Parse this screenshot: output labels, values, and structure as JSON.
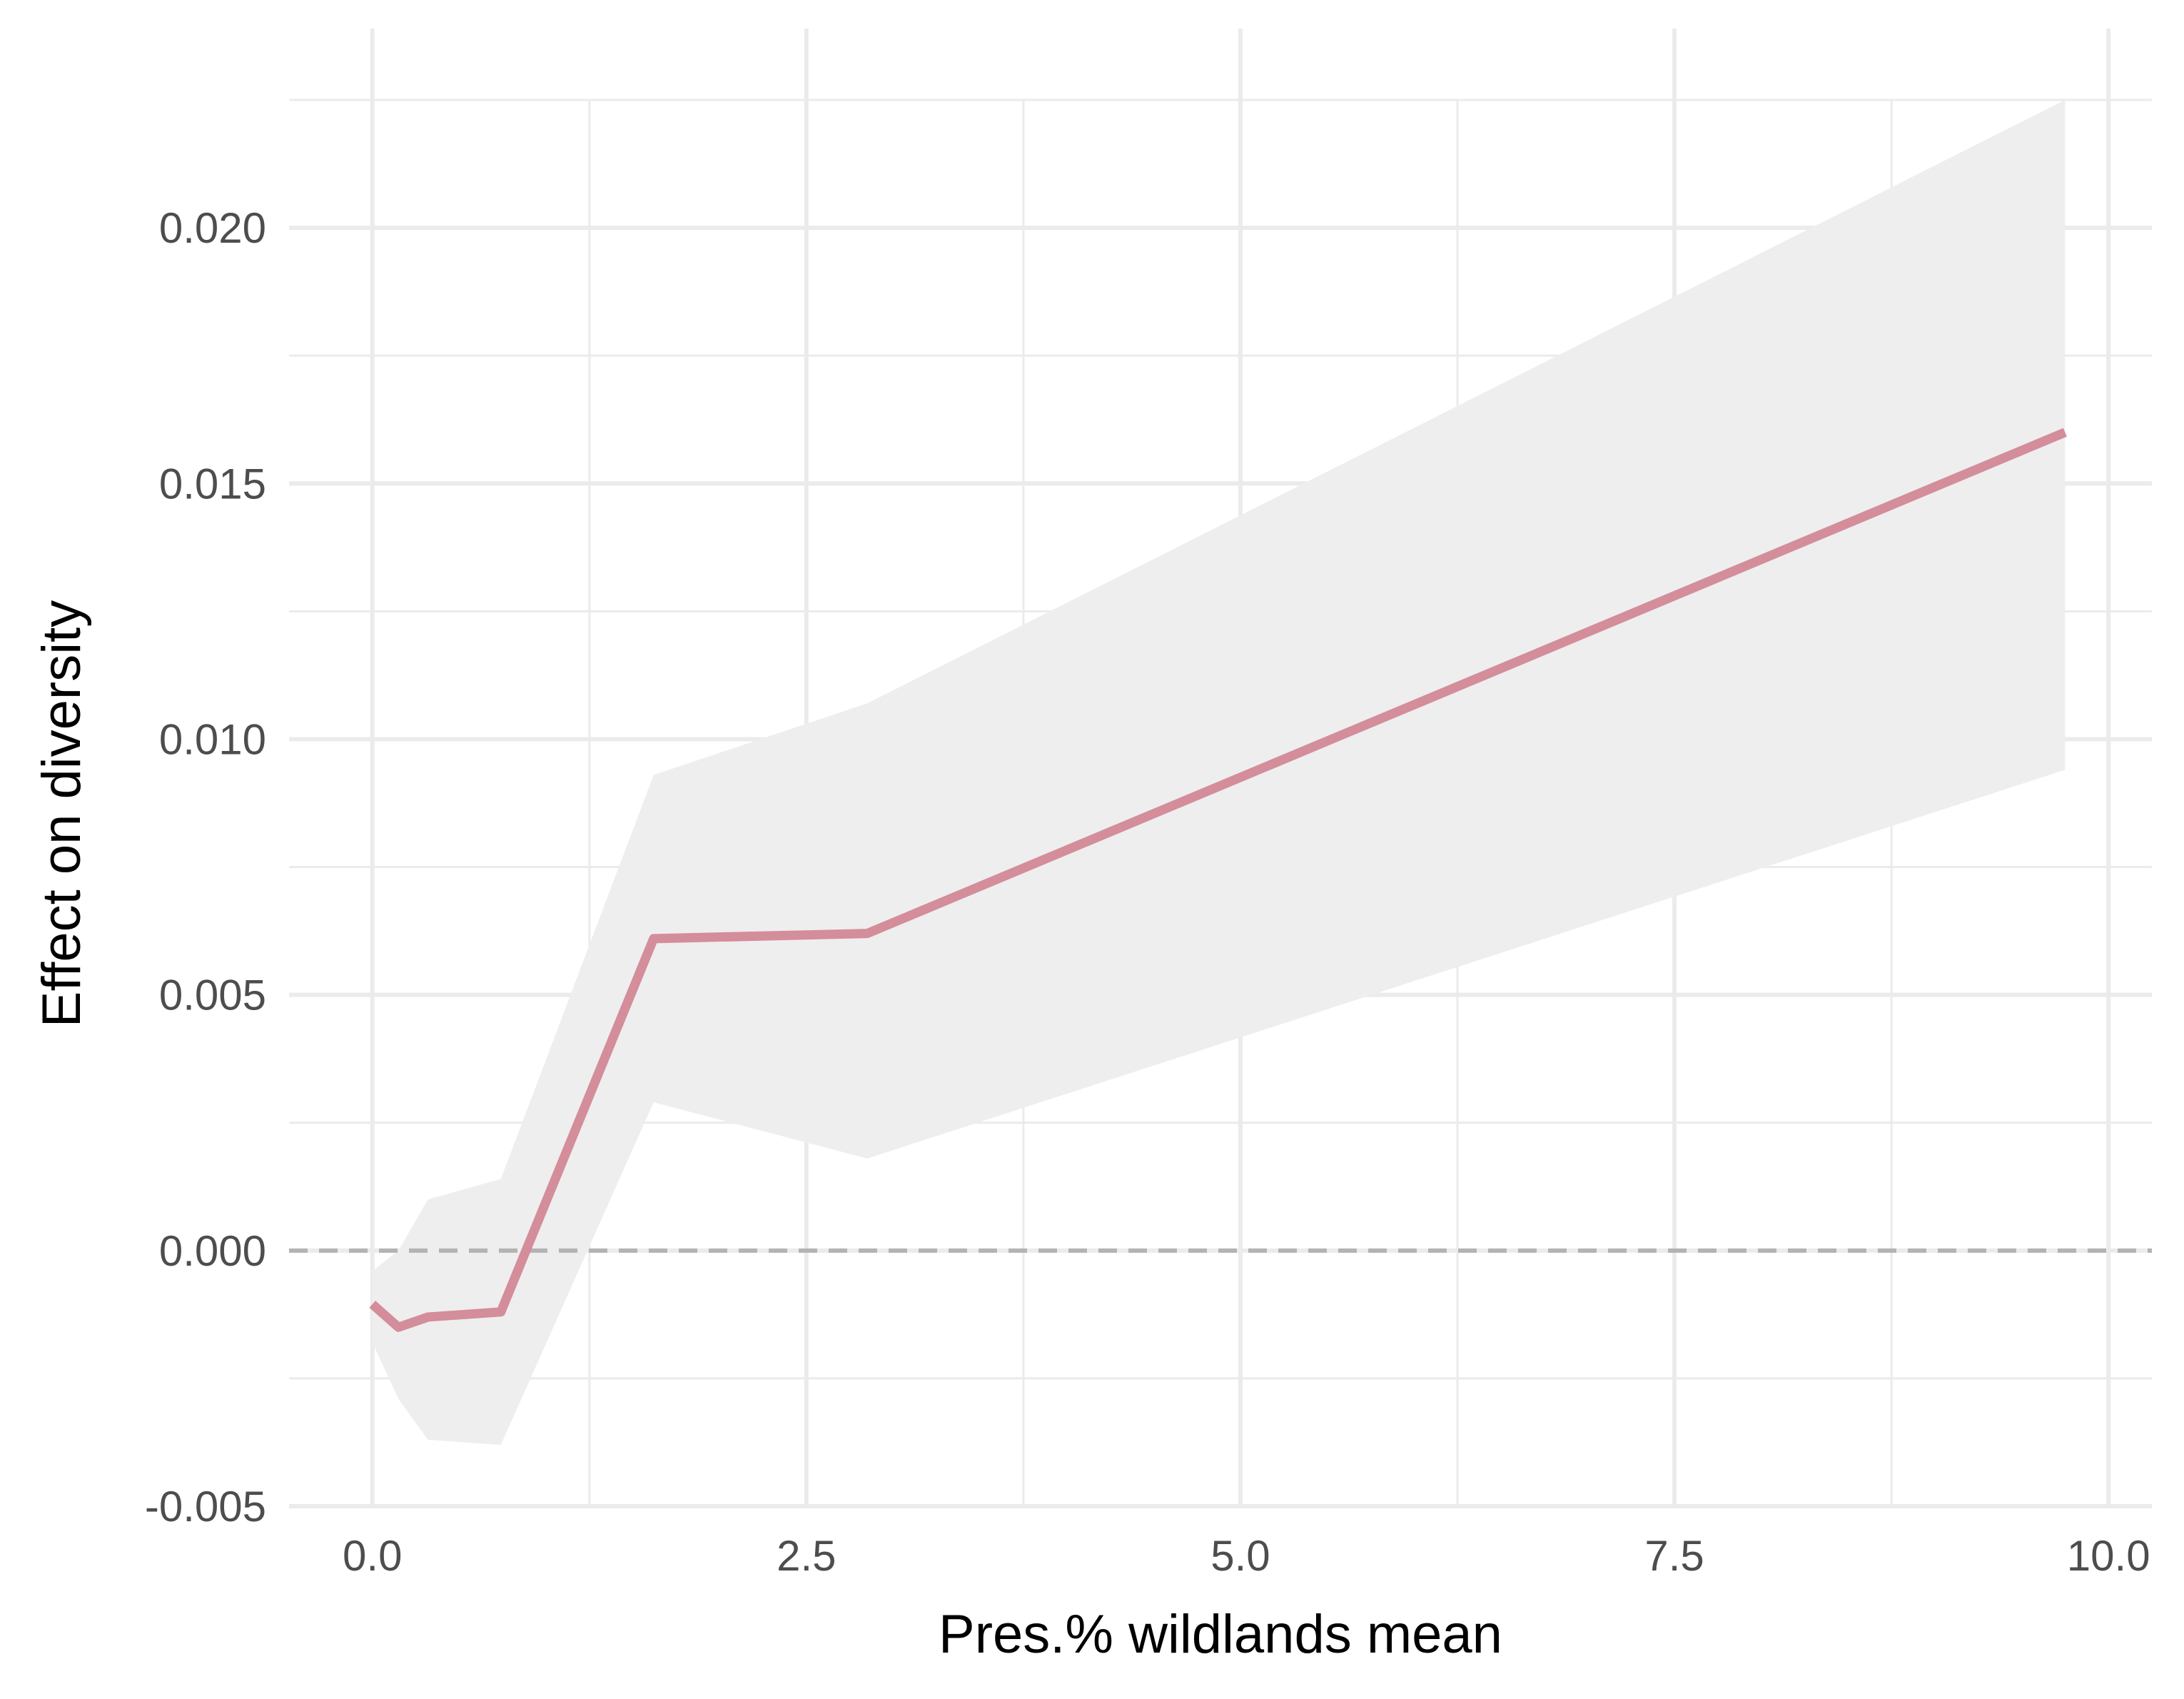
{
  "chart_data": {
    "type": "line",
    "title": "",
    "xlabel": "Pres.% wildlands mean",
    "ylabel": "Effect on diversity",
    "xlim": [
      -0.48,
      10.25
    ],
    "ylim": [
      -0.005,
      0.0225
    ],
    "x_ticks": [
      0.0,
      2.5,
      5.0,
      7.5,
      10.0
    ],
    "x_tick_labels": [
      "0.0",
      "2.5",
      "5.0",
      "7.5",
      "10.0"
    ],
    "y_ticks": [
      -0.005,
      0.0,
      0.005,
      0.01,
      0.015,
      0.02
    ],
    "y_tick_labels": [
      "-0.005",
      "0.000",
      "0.005",
      "0.010",
      "0.015",
      "0.020"
    ],
    "grid": true,
    "reference_line": {
      "y": 0.0,
      "style": "dashed",
      "color": "#b3b3b3"
    },
    "series": [
      {
        "x": [
          0.0,
          0.15,
          0.32,
          0.74,
          1.62,
          2.85,
          9.75
        ],
        "y": [
          -0.00105,
          -0.0015,
          -0.0013,
          -0.0012,
          0.0061,
          0.0062,
          0.016
        ],
        "ci_lower": [
          -0.0018,
          -0.0029,
          -0.0037,
          -0.0038,
          0.0029,
          0.0018,
          0.0094
        ],
        "ci_upper": [
          -0.0004,
          0.0,
          0.001,
          0.0014,
          0.0093,
          0.0107,
          0.0225
        ],
        "color": "#d48d9a",
        "band_color": "#eeeeee"
      }
    ]
  }
}
